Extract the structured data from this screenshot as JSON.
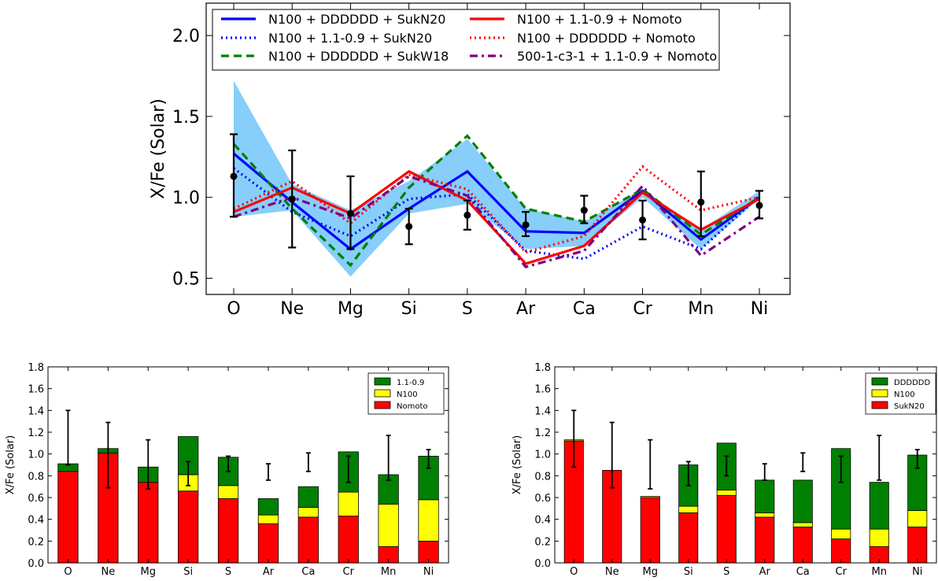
{
  "chart_data": [
    {
      "type": "line",
      "title": "",
      "xlabel": "",
      "ylabel": "X/Fe (Solar)",
      "categories": [
        "O",
        "Ne",
        "Mg",
        "Si",
        "S",
        "Ar",
        "Ca",
        "Cr",
        "Mn",
        "Ni"
      ],
      "ylim": [
        0.4,
        2.2
      ],
      "yticks": [
        "0.5",
        "1.0",
        "1.5",
        "2.0"
      ],
      "legend_position": "top",
      "band": {
        "color": "#87CEFA",
        "upper": [
          1.72,
          1.08,
          0.92,
          1.1,
          1.36,
          0.93,
          0.85,
          1.05,
          0.8,
          1.04
        ],
        "lower": [
          0.88,
          0.92,
          0.51,
          0.9,
          0.96,
          0.68,
          0.7,
          1.0,
          0.68,
          0.99
        ]
      },
      "series": [
        {
          "name": "N100 + DDDDDD + SukN20",
          "color": "#0000ff",
          "dash": "solid",
          "values": [
            1.27,
            0.97,
            0.68,
            0.93,
            1.16,
            0.79,
            0.78,
            1.04,
            0.74,
            1.0
          ]
        },
        {
          "name": "N100 + 1.1-0.9 + SukN20",
          "color": "#0000ff",
          "dash": "dotted",
          "values": [
            1.18,
            0.91,
            0.76,
            0.99,
            1.02,
            0.67,
            0.62,
            0.82,
            0.68,
            1.01
          ]
        },
        {
          "name": "N100 + DDDDDD + SukW18",
          "color": "#008000",
          "dash": "dashed",
          "values": [
            1.33,
            0.93,
            0.58,
            1.06,
            1.38,
            0.93,
            0.85,
            1.05,
            0.77,
            1.0
          ]
        },
        {
          "name": "N100 + 1.1-0.9 + Nomoto",
          "color": "#ff0000",
          "dash": "solid",
          "values": [
            0.91,
            1.06,
            0.9,
            1.16,
            0.98,
            0.59,
            0.7,
            1.03,
            0.8,
            0.99
          ]
        },
        {
          "name": "N100 + DDDDDD + Nomoto",
          "color": "#ff0000",
          "dash": "dotted",
          "values": [
            0.93,
            1.1,
            0.84,
            1.14,
            1.05,
            0.66,
            0.76,
            1.19,
            0.92,
            1.0
          ]
        },
        {
          "name": "500-1-c3-1 + 1.1-0.9 + Nomoto",
          "color": "#800080",
          "dash": "dashdot",
          "values": [
            0.88,
            1.0,
            0.87,
            1.13,
            1.01,
            0.57,
            0.67,
            1.07,
            0.64,
            0.88
          ]
        }
      ],
      "observations": {
        "color": "#000000",
        "values": [
          1.13,
          0.99,
          0.9,
          0.82,
          0.89,
          0.83,
          0.92,
          0.86,
          0.97,
          0.95
        ],
        "err_low": [
          0.88,
          0.69,
          0.68,
          0.71,
          0.8,
          0.76,
          0.84,
          0.74,
          0.76,
          0.87
        ],
        "err_high": [
          1.39,
          1.29,
          1.13,
          0.93,
          0.98,
          0.91,
          1.01,
          0.98,
          1.16,
          1.04
        ]
      }
    },
    {
      "type": "bar",
      "stacked": true,
      "title": "",
      "xlabel": "",
      "ylabel": "X/Fe (Solar)",
      "categories": [
        "O",
        "Ne",
        "Mg",
        "Si",
        "S",
        "Ar",
        "Ca",
        "Cr",
        "Mn",
        "Ni"
      ],
      "ylim": [
        0.0,
        1.8
      ],
      "yticks": [
        "0.0",
        "0.2",
        "0.4",
        "0.6",
        "0.8",
        "1.0",
        "1.2",
        "1.4",
        "1.6",
        "1.8"
      ],
      "legend_position": "top-right",
      "series": [
        {
          "name": "Nomoto",
          "color": "#ff0000",
          "values": [
            0.84,
            1.01,
            0.74,
            0.66,
            0.59,
            0.36,
            0.42,
            0.43,
            0.15,
            0.2
          ]
        },
        {
          "name": "N100",
          "color": "#ffff00",
          "values": [
            0.0,
            0.0,
            0.0,
            0.15,
            0.12,
            0.08,
            0.09,
            0.22,
            0.39,
            0.38
          ]
        },
        {
          "name": "1.1-0.9",
          "color": "#008000",
          "values": [
            0.07,
            0.04,
            0.14,
            0.35,
            0.26,
            0.15,
            0.19,
            0.37,
            0.27,
            0.4
          ]
        }
      ],
      "legend_order": [
        "1.1-0.9",
        "N100",
        "Nomoto"
      ],
      "observations": {
        "err_low": [
          0.9,
          0.69,
          0.68,
          0.71,
          0.84,
          0.76,
          0.84,
          0.74,
          0.76,
          0.87
        ],
        "err_high": [
          1.4,
          1.29,
          1.13,
          0.93,
          0.98,
          0.91,
          1.01,
          0.98,
          1.17,
          1.04
        ]
      }
    },
    {
      "type": "bar",
      "stacked": true,
      "title": "",
      "xlabel": "",
      "ylabel": "X/Fe (Solar)",
      "categories": [
        "O",
        "Ne",
        "Mg",
        "Si",
        "S",
        "Ar",
        "Ca",
        "Cr",
        "Mn",
        "Ni"
      ],
      "ylim": [
        0.0,
        1.8
      ],
      "yticks": [
        "0.0",
        "0.2",
        "0.4",
        "0.6",
        "0.8",
        "1.0",
        "1.2",
        "1.4",
        "1.6",
        "1.8"
      ],
      "legend_position": "top-right",
      "series": [
        {
          "name": "SukN20",
          "color": "#ff0000",
          "values": [
            1.12,
            0.85,
            0.6,
            0.46,
            0.62,
            0.42,
            0.33,
            0.22,
            0.15,
            0.33
          ]
        },
        {
          "name": "N100",
          "color": "#ffff00",
          "values": [
            0.01,
            0.0,
            0.01,
            0.06,
            0.05,
            0.04,
            0.04,
            0.09,
            0.16,
            0.15
          ]
        },
        {
          "name": "DDDDDD",
          "color": "#008000",
          "values": [
            0.0,
            0.0,
            0.0,
            0.38,
            0.43,
            0.3,
            0.39,
            0.74,
            0.43,
            0.51
          ]
        }
      ],
      "legend_order": [
        "DDDDDD",
        "N100",
        "SukN20"
      ],
      "observations": {
        "err_low": [
          0.88,
          0.69,
          0.68,
          0.71,
          0.8,
          0.76,
          0.84,
          0.74,
          0.76,
          0.87
        ],
        "err_high": [
          1.4,
          1.29,
          1.13,
          0.93,
          0.98,
          0.91,
          1.01,
          0.98,
          1.17,
          1.04
        ]
      }
    }
  ]
}
